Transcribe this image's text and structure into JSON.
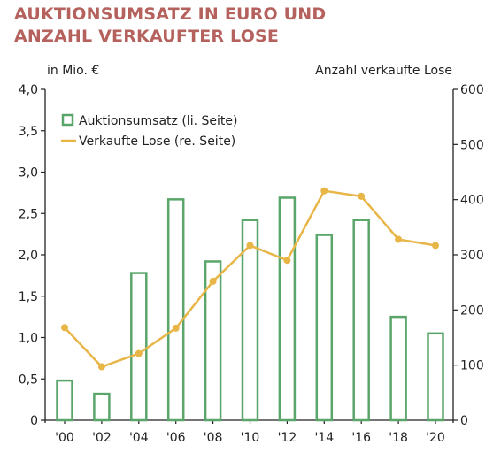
{
  "title_lines": [
    "AUKTIONSUMSATZ IN EURO UND",
    "ANZAHL VERKAUFTER LOSE"
  ],
  "colors": {
    "title": "#b5615d",
    "bars": "#5aa66a",
    "line": "#e8b547",
    "axis": "#222222"
  },
  "chart_data": {
    "type": "bar",
    "categories": [
      "'00",
      "'02",
      "'04",
      "'06",
      "'08",
      "'10",
      "'12",
      "'14",
      "'16",
      "'18",
      "'20"
    ],
    "y_left_label": "in Mio. €",
    "y_right_label": "Anzahl verkaufte Lose",
    "y_left_range": [
      0,
      4.0
    ],
    "y_right_range": [
      0,
      600
    ],
    "y_left_ticks": [
      "0",
      "0,5",
      "1,0",
      "1,5",
      "2,0",
      "2,5",
      "3,0",
      "3,5",
      "4,0"
    ],
    "y_right_ticks": [
      "0",
      "100",
      "200",
      "300",
      "400",
      "500",
      "600"
    ],
    "grid": false,
    "legend_position": "top-left",
    "series": [
      {
        "name": "Auktionsumsatz (li. Seite)",
        "type": "bar",
        "axis": "left",
        "values": [
          0.48,
          0.32,
          1.78,
          2.67,
          1.92,
          2.42,
          2.69,
          2.24,
          2.42,
          1.25,
          1.05
        ]
      },
      {
        "name": "Verkaufte Lose (re. Seite)",
        "type": "line",
        "axis": "right",
        "values": [
          168,
          97,
          121,
          167,
          252,
          317,
          290,
          416,
          406,
          328,
          317
        ]
      }
    ]
  }
}
